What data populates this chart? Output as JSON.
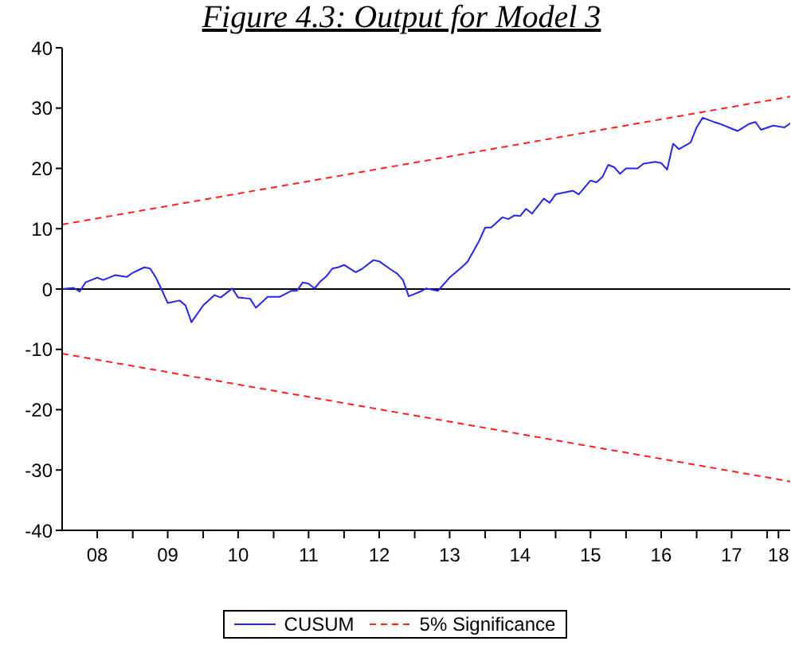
{
  "chart_data": {
    "type": "line",
    "title": "Figure 4.3: Output for Model 3",
    "xlim": [
      "2008-01",
      "2018-05"
    ],
    "xticks": [
      {
        "value": "2008-07",
        "label": "08"
      },
      {
        "value": "2009-01",
        "label": null
      },
      {
        "value": "2009-07",
        "label": "09"
      },
      {
        "value": "2010-01",
        "label": null
      },
      {
        "value": "2010-07",
        "label": "10"
      },
      {
        "value": "2011-01",
        "label": null
      },
      {
        "value": "2011-07",
        "label": "11"
      },
      {
        "value": "2012-01",
        "label": null
      },
      {
        "value": "2012-07",
        "label": "12"
      },
      {
        "value": "2013-01",
        "label": null
      },
      {
        "value": "2013-07",
        "label": "13"
      },
      {
        "value": "2014-01",
        "label": null
      },
      {
        "value": "2014-07",
        "label": "14"
      },
      {
        "value": "2015-01",
        "label": null
      },
      {
        "value": "2015-07",
        "label": "15"
      },
      {
        "value": "2016-01",
        "label": null
      },
      {
        "value": "2016-07",
        "label": "16"
      },
      {
        "value": "2017-01",
        "label": null
      },
      {
        "value": "2017-07",
        "label": "17"
      },
      {
        "value": "2018-01",
        "label": null
      },
      {
        "value": "2018-03",
        "label": "18"
      }
    ],
    "ylim": [
      -40,
      40
    ],
    "yticks": [
      -40,
      -30,
      -20,
      -10,
      0,
      10,
      20,
      30,
      40
    ],
    "legend": "bottom",
    "ref_lines": [
      {
        "axis": "y",
        "value": 0,
        "color": "#000000",
        "line_style": "solid"
      }
    ],
    "series": [
      {
        "name": "CUSUM",
        "color": "#2626f0",
        "line_style": "solid",
        "x": [
          "2008-01",
          "2008-03",
          "2008-04",
          "2008-05",
          "2008-07",
          "2008-08",
          "2008-10",
          "2008-12",
          "2009-01",
          "2009-03",
          "2009-04",
          "2009-05",
          "2009-06",
          "2009-07",
          "2009-09",
          "2009-10",
          "2009-11",
          "2010-01",
          "2010-03",
          "2010-04",
          "2010-06",
          "2010-07",
          "2010-09",
          "2010-10",
          "2010-12",
          "2011-02",
          "2011-04",
          "2011-05",
          "2011-06",
          "2011-07",
          "2011-08",
          "2011-09",
          "2011-10",
          "2011-11",
          "2011-12",
          "2012-01",
          "2012-03",
          "2012-04",
          "2012-06",
          "2012-07",
          "2012-09",
          "2012-10",
          "2012-11",
          "2012-12",
          "2013-02",
          "2013-03",
          "2013-05",
          "2013-07",
          "2013-09",
          "2013-10",
          "2013-12",
          "2014-01",
          "2014-02",
          "2014-04",
          "2014-05",
          "2014-06",
          "2014-07",
          "2014-08",
          "2014-09",
          "2014-11",
          "2014-12",
          "2015-01",
          "2015-04",
          "2015-05",
          "2015-07",
          "2015-08",
          "2015-09",
          "2015-10",
          "2015-11",
          "2015-12",
          "2016-01",
          "2016-03",
          "2016-04",
          "2016-06",
          "2016-07",
          "2016-08",
          "2016-09",
          "2016-10",
          "2016-12",
          "2017-01",
          "2017-02",
          "2017-04",
          "2017-05",
          "2017-07",
          "2017-08",
          "2017-10",
          "2017-11",
          "2017-12",
          "2018-02",
          "2018-04",
          "2018-05"
        ],
        "values": [
          0,
          0.2,
          -0.4,
          1.1,
          1.9,
          1.5,
          2.3,
          2.0,
          2.7,
          3.6,
          3.4,
          1.9,
          -0.2,
          -2.3,
          -1.9,
          -2.7,
          -5.5,
          -2.7,
          -1.0,
          -1.4,
          0.1,
          -1.4,
          -1.6,
          -3.1,
          -1.3,
          -1.3,
          -0.3,
          -0.3,
          1.1,
          0.9,
          0.1,
          1.3,
          2.1,
          3.4,
          3.6,
          4.0,
          2.8,
          3.3,
          4.8,
          4.6,
          3.2,
          2.6,
          1.5,
          -1.2,
          -0.4,
          0.1,
          -0.3,
          1.9,
          3.6,
          4.5,
          8.0,
          10.2,
          10.2,
          11.9,
          11.6,
          12.2,
          12.1,
          13.3,
          12.5,
          15.0,
          14.3,
          15.7,
          16.3,
          15.7,
          18.0,
          17.7,
          18.6,
          20.6,
          20.2,
          19.1,
          20.0,
          20.0,
          20.8,
          21.1,
          20.9,
          19.8,
          24.1,
          23.2,
          24.3,
          26.8,
          28.4,
          27.7,
          27.4,
          26.6,
          26.2,
          27.4,
          27.7,
          26.4,
          27.1,
          26.8,
          27.5
        ]
      },
      {
        "name": "5% Significance",
        "color": "#ff2020",
        "line_style": "dashed",
        "x": [
          "2008-01",
          "2018-05"
        ],
        "values": [
          10.7,
          31.9
        ]
      },
      {
        "color": "#ff2020",
        "line_style": "dashed",
        "x": [
          "2008-01",
          "2018-05"
        ],
        "values": [
          -10.7,
          -31.9
        ]
      }
    ]
  }
}
